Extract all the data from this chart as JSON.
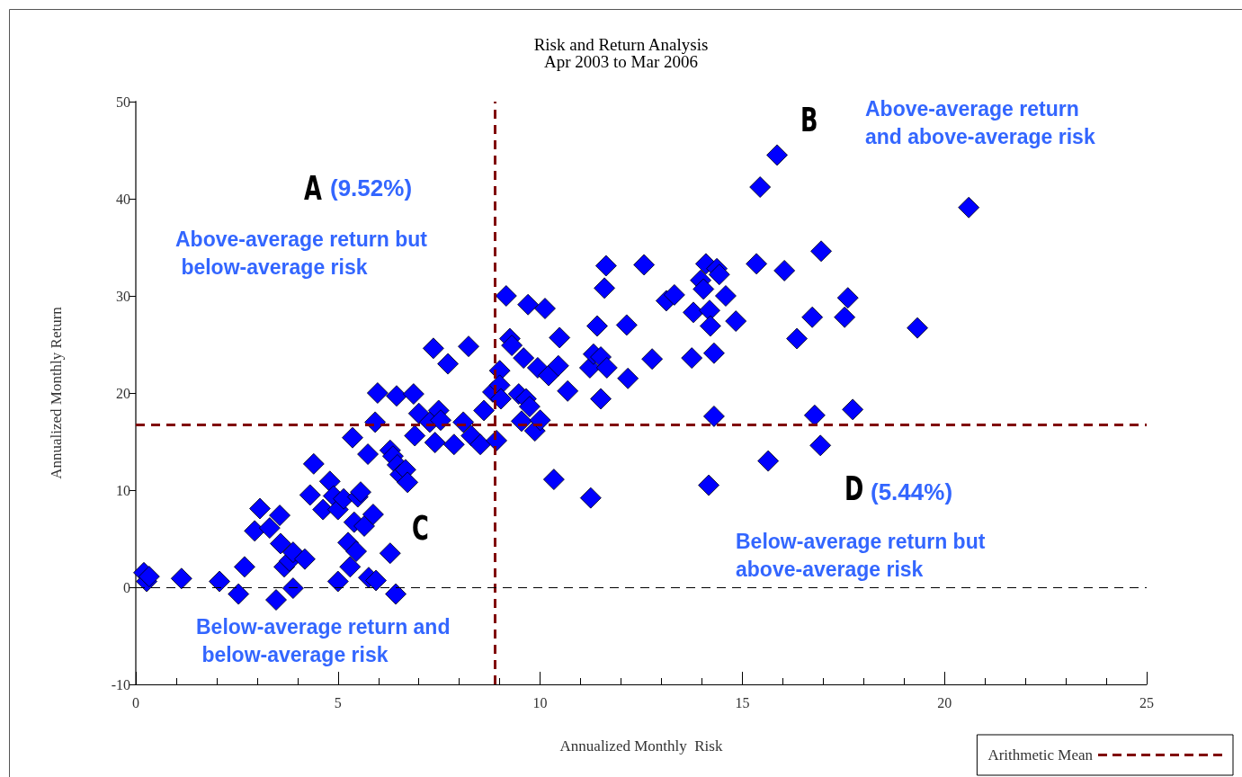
{
  "chart_data": {
    "type": "scatter",
    "title": "Risk and Return Analysis",
    "subtitle": "Apr 2003 to Mar 2006",
    "xlabel": "Annualized Monthly  Risk",
    "ylabel": "Annualized Monthly Return",
    "x": [
      0.2,
      0.27,
      0.33,
      1.13,
      2.07,
      2.54,
      2.69,
      2.94,
      3.07,
      3.31,
      3.47,
      3.56,
      3.58,
      3.67,
      3.8,
      3.89,
      3.89,
      4.18,
      4.31,
      4.4,
      4.63,
      4.8,
      4.89,
      5.0,
      5.0,
      5.14,
      5.25,
      5.3,
      5.36,
      5.4,
      5.45,
      5.49,
      5.56,
      5.65,
      5.74,
      5.76,
      5.87,
      5.94,
      5.92,
      5.98,
      6.29,
      6.29,
      6.36,
      6.43,
      6.45,
      6.47,
      6.54,
      6.67,
      6.72,
      6.87,
      6.9,
      7.0,
      7.27,
      7.36,
      7.4,
      7.49,
      7.54,
      7.72,
      7.87,
      8.1,
      8.23,
      8.3,
      8.52,
      8.61,
      8.83,
      8.92,
      9.0,
      9.0,
      9.03,
      9.16,
      9.25,
      9.3,
      9.47,
      9.54,
      9.59,
      9.65,
      9.7,
      9.74,
      9.87,
      9.94,
      10.0,
      10.12,
      10.21,
      10.34,
      10.45,
      10.48,
      10.68,
      11.25,
      11.23,
      11.32,
      11.41,
      11.5,
      11.5,
      11.59,
      11.65,
      11.63,
      12.14,
      12.17,
      12.57,
      12.77,
      13.12,
      13.32,
      13.75,
      13.79,
      13.97,
      14.04,
      14.1,
      14.17,
      14.19,
      14.21,
      14.3,
      14.3,
      14.37,
      14.43,
      14.59,
      14.84,
      15.35,
      15.44,
      15.64,
      15.86,
      16.04,
      16.35,
      16.73,
      16.79,
      16.93,
      16.95,
      17.53,
      17.61,
      17.73,
      19.33,
      20.6
    ],
    "values": [
      1.5,
      0.6,
      1.1,
      0.9,
      0.6,
      -0.7,
      2.1,
      5.8,
      8.1,
      6.1,
      -1.3,
      7.4,
      4.5,
      2.1,
      2.7,
      3.6,
      -0.1,
      2.9,
      9.5,
      12.7,
      8.0,
      10.9,
      9.4,
      8.0,
      0.6,
      9.1,
      4.6,
      2.1,
      15.4,
      6.7,
      3.7,
      9.3,
      9.8,
      6.3,
      13.7,
      1.0,
      7.5,
      0.7,
      17.0,
      20.0,
      3.5,
      14.1,
      13.5,
      -0.7,
      19.7,
      12.6,
      11.6,
      12.1,
      10.8,
      19.9,
      15.6,
      17.9,
      17.0,
      24.6,
      14.9,
      18.2,
      17.2,
      23.0,
      14.7,
      17.0,
      24.8,
      15.6,
      14.7,
      18.2,
      20.1,
      15.1,
      22.3,
      20.8,
      19.4,
      30.0,
      25.6,
      24.9,
      19.9,
      17.1,
      23.6,
      19.4,
      29.1,
      18.6,
      16.1,
      22.6,
      17.2,
      28.7,
      21.8,
      11.1,
      22.8,
      25.7,
      20.2,
      9.2,
      22.6,
      24.0,
      26.9,
      23.7,
      19.4,
      30.8,
      22.6,
      33.1,
      27.0,
      21.5,
      33.2,
      23.5,
      29.5,
      30.1,
      23.6,
      28.3,
      31.6,
      30.7,
      33.3,
      10.5,
      28.5,
      26.9,
      24.1,
      17.6,
      32.8,
      32.2,
      30.0,
      27.4,
      33.3,
      41.2,
      13.0,
      44.5,
      32.6,
      25.6,
      27.8,
      17.7,
      14.6,
      34.6,
      27.8,
      29.8,
      18.3,
      26.7,
      39.1
    ],
    "color": "#0000ff",
    "marker": "diamond",
    "xlim": [
      0,
      25
    ],
    "xticks": [
      0,
      5,
      10,
      15,
      20,
      25
    ],
    "ylim": [
      -10,
      50
    ],
    "yticks": [
      -10,
      0,
      10,
      20,
      30,
      40,
      50
    ],
    "grid": false,
    "legend": "bottom right",
    "ref_lines": [
      {
        "axis": "x",
        "value": 8.87,
        "label": "Arithmetic Mean",
        "color": "#800000",
        "line_style": "dashed"
      },
      {
        "axis": "y",
        "value": 16.76,
        "color": "#800000",
        "line_style": "dashed"
      },
      {
        "axis": "y",
        "value": 0,
        "color": "#000000",
        "line_style": "dashed"
      }
    ],
    "annotations": [
      "A",
      "(9.52%)",
      "Above-average return but below-average risk",
      "B",
      "Above-average return and above-average risk",
      "C",
      "Below-average return and below-average risk",
      "D",
      "(5.44%)",
      "Below-average return but above-average risk"
    ]
  }
}
